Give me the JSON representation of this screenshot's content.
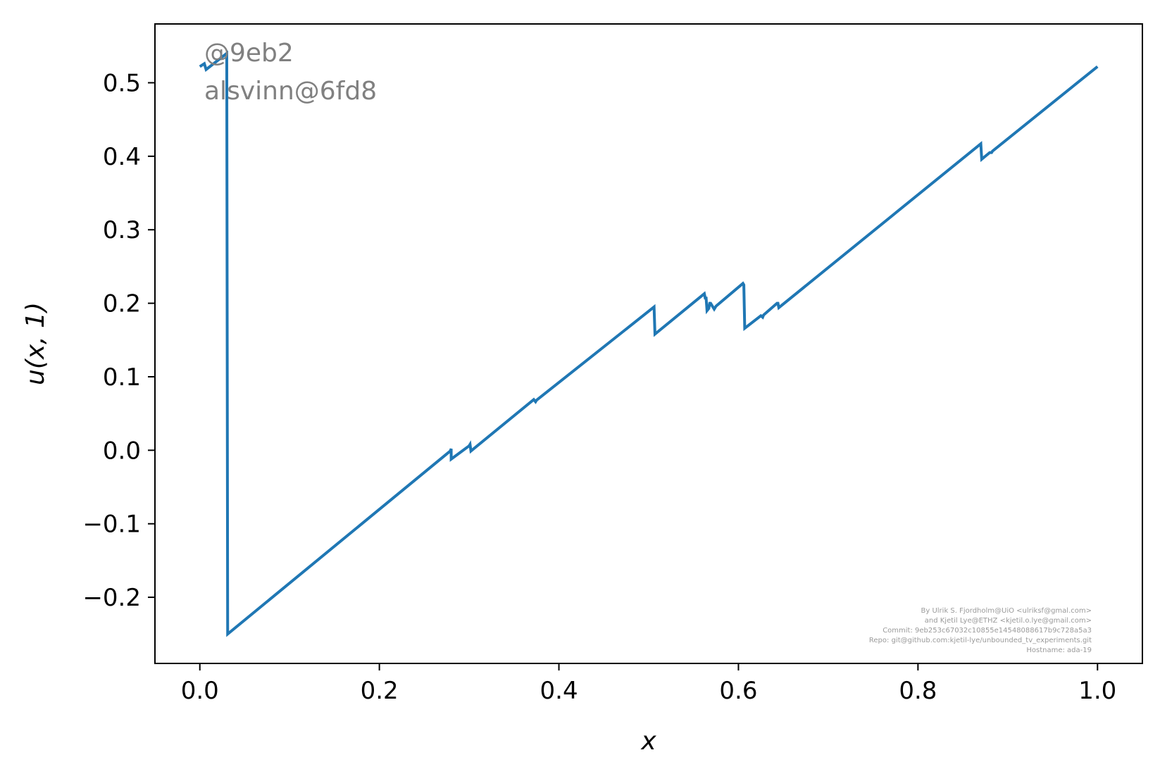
{
  "chart_data": {
    "type": "line",
    "title": "",
    "xlabel": "x",
    "ylabel": "u(x, 1)",
    "xlim": [
      -0.05,
      1.05
    ],
    "ylim": [
      -0.29,
      0.58
    ],
    "xticks": [
      0.0,
      0.2,
      0.4,
      0.6,
      0.8,
      1.0
    ],
    "xtick_labels": [
      "0.0",
      "0.2",
      "0.4",
      "0.6",
      "0.8",
      "1.0"
    ],
    "yticks": [
      -0.2,
      -0.1,
      0.0,
      0.1,
      0.2,
      0.3,
      0.4,
      0.5
    ],
    "ytick_labels": [
      "−0.2",
      "−0.1",
      "0.0",
      "0.1",
      "0.2",
      "0.3",
      "0.4",
      "0.5"
    ],
    "grid": false,
    "legend": "none",
    "series": [
      {
        "color": "#1f77b4",
        "x": [
          0.0,
          0.005,
          0.007,
          0.03,
          0.03,
          0.031,
          0.279,
          0.28,
          0.28,
          0.3,
          0.301,
          0.302,
          0.302,
          0.372,
          0.374,
          0.375,
          0.506,
          0.507,
          0.507,
          0.562,
          0.563,
          0.564,
          0.565,
          0.567,
          0.568,
          0.569,
          0.573,
          0.575,
          0.605,
          0.606,
          0.607,
          0.625,
          0.627,
          0.628,
          0.643,
          0.644,
          0.645,
          0.869,
          0.87,
          0.871,
          0.88,
          0.882,
          0.883,
          1.0
        ],
        "y": [
          0.522,
          0.526,
          0.518,
          0.54,
          0.54,
          -0.25,
          -0.001,
          0.002,
          -0.012,
          0.006,
          0.008,
          -0.001,
          -0.001,
          0.069,
          0.066,
          0.068,
          0.195,
          0.158,
          0.158,
          0.213,
          0.207,
          0.207,
          0.19,
          0.193,
          0.2,
          0.2,
          0.192,
          0.196,
          0.227,
          0.225,
          0.166,
          0.183,
          0.181,
          0.184,
          0.2,
          0.2,
          0.194,
          0.416,
          0.417,
          0.396,
          0.405,
          0.405,
          0.407,
          0.522
        ]
      }
    ]
  },
  "watermark": {
    "line1": "@9eb2",
    "line2": "alsvinn@6fd8"
  },
  "credits": [
    "By Ulrik S. Fjordholm@UiO <ulriksf@gmal.com>",
    "and Kjetil Lye@ETHZ <kjetil.o.lye@gmail.com>",
    "Commit: 9eb253c67032c10855e14548088617b9c728a5a3",
    "Repo: git@github.com:kjetil-lye/unbounded_tv_experiments.git",
    "Hostname: ada-19"
  ]
}
